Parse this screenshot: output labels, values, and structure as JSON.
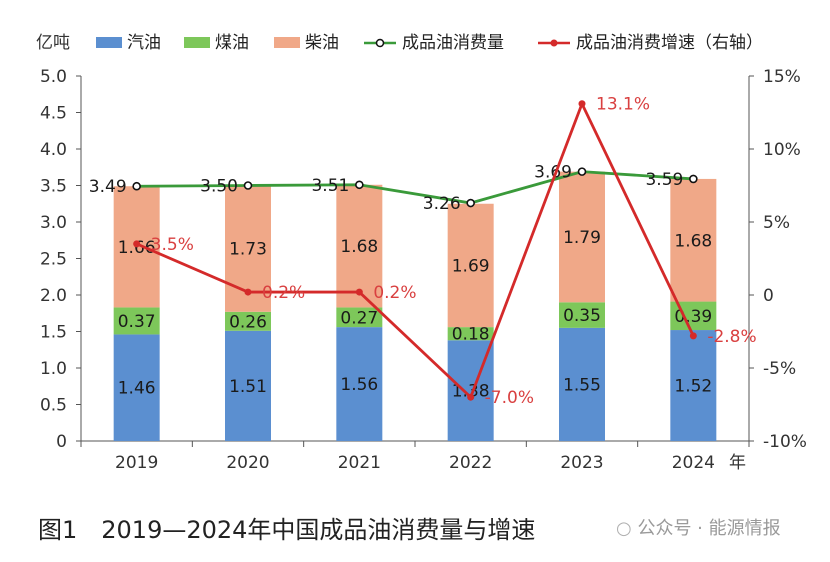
{
  "chart_data": {
    "type": "bar",
    "stacked": true,
    "categories": [
      "2019",
      "2020",
      "2021",
      "2022",
      "2023",
      "2024"
    ],
    "series": [
      {
        "name": "汽油",
        "color": "#5b8fd0",
        "values": [
          1.46,
          1.51,
          1.56,
          1.38,
          1.55,
          1.52
        ]
      },
      {
        "name": "煤油",
        "color": "#7dc75a",
        "values": [
          0.37,
          0.26,
          0.27,
          0.18,
          0.35,
          0.39
        ]
      },
      {
        "name": "柴油",
        "color": "#f0a888",
        "values": [
          1.66,
          1.73,
          1.68,
          1.69,
          1.79,
          1.68
        ]
      }
    ],
    "total_series": {
      "name": "成品油消费量",
      "color": "#3a9a3a",
      "values": [
        3.49,
        3.5,
        3.51,
        3.26,
        3.69,
        3.59
      ],
      "labels": [
        "3.49",
        "3.50",
        "3.51",
        "3.26",
        "3.69",
        "3.59"
      ]
    },
    "growth_series": {
      "name": "成品油消费增速（右轴）",
      "color": "#d42a2a",
      "values": [
        3.5,
        0.2,
        0.2,
        -7.0,
        13.1,
        -2.8
      ],
      "labels": [
        "3.5%",
        "0.2%",
        "0.2%",
        "-7.0%",
        "13.1%",
        "-2.8%"
      ]
    },
    "ylabel": "亿吨",
    "xlabel": "年",
    "ylim": [
      0,
      5.0
    ],
    "yticks": [
      "0",
      "0.5",
      "1.0",
      "1.5",
      "2.0",
      "2.5",
      "3.0",
      "3.5",
      "4.0",
      "4.5",
      "5.0"
    ],
    "y2lim": [
      -10,
      15
    ],
    "y2ticks": [
      "-10%",
      "-5%",
      "0",
      "5%",
      "10%",
      "15%"
    ],
    "legend_position": "top",
    "grid": false
  },
  "caption": "图1　2019—2024年中国成品油消费量与增速",
  "watermark": "公众号 · 能源情报"
}
